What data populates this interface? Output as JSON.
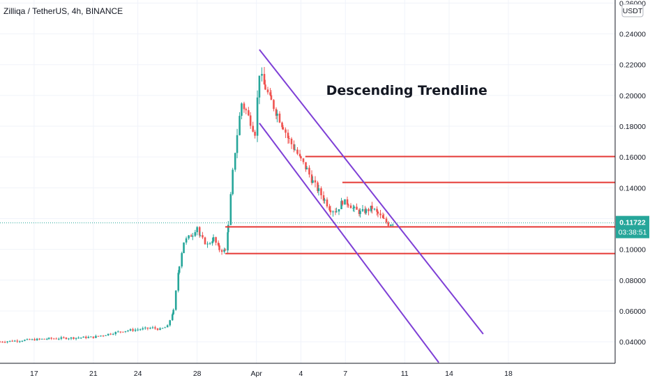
{
  "chart_data": {
    "type": "candlestick",
    "title": "Zilliqa / TetherUS, 4h, BINANCE",
    "currency": "USDT",
    "price_labels": [
      "0.26000",
      "0.24000",
      "0.22000",
      "0.20000",
      "0.18000",
      "0.16000",
      "0.14000",
      "0.12000",
      "0.10000",
      "0.08000",
      "0.06000",
      "0.04000"
    ],
    "price_ticks": [
      0.26,
      0.24,
      0.22,
      0.2,
      0.18,
      0.16,
      0.14,
      0.12,
      0.1,
      0.08,
      0.06,
      0.04
    ],
    "ylim": [
      0.026,
      0.262
    ],
    "date_labels": [
      "17",
      "21",
      "24",
      "28",
      "Apr",
      "4",
      "7",
      "11",
      "14",
      "18"
    ],
    "date_ticks": [
      -15,
      -11,
      -8,
      -4,
      0,
      3,
      6,
      10,
      13,
      17
    ],
    "xlim": [
      -17.3,
      24.2
    ],
    "current_price": {
      "value": 0.11722,
      "price_label": "0.11722",
      "countdown": "03:38:51"
    },
    "annotation": {
      "text": "Descending Trendline",
      "x": 4.7,
      "y": 0.2005
    },
    "colors": {
      "up": "#26a69a",
      "down": "#ef5350",
      "hline": "#e53935",
      "channel": "#7e3fd6",
      "current": "#26a69a"
    },
    "horizontal_lines": [
      {
        "x_start": 3.3,
        "x_end": 24.2,
        "y": 0.1603
      },
      {
        "x_start": 5.8,
        "x_end": 24.2,
        "y": 0.1435
      },
      {
        "x_start": -2.1,
        "x_end": 24.2,
        "y": 0.1146
      },
      {
        "x_start": -2.1,
        "x_end": 24.2,
        "y": 0.0973
      }
    ],
    "trendlines": [
      {
        "x1": 0.2,
        "y1": 0.2298,
        "x2": 15.3,
        "y2": 0.045
      },
      {
        "x1": 0.2,
        "y1": 0.182,
        "x2": 12.3,
        "y2": 0.0265
      }
    ],
    "key_points": [
      [
        -17.3,
        0.04
      ],
      [
        -14,
        0.042
      ],
      [
        -11,
        0.043
      ],
      [
        -9,
        0.047
      ],
      [
        -7,
        0.049
      ],
      [
        -6.5,
        0.048
      ],
      [
        -6,
        0.05
      ],
      [
        -5.6,
        0.06
      ],
      [
        -5.2,
        0.09
      ],
      [
        -4.9,
        0.105
      ],
      [
        -4.3,
        0.11
      ],
      [
        -4,
        0.115
      ],
      [
        -3.8,
        0.108
      ],
      [
        -3.3,
        0.103
      ],
      [
        -2.9,
        0.107
      ],
      [
        -2.5,
        0.1
      ],
      [
        -2.1,
        0.099
      ],
      [
        -1.9,
        0.115
      ],
      [
        -1.6,
        0.15
      ],
      [
        -1.3,
        0.175
      ],
      [
        -1,
        0.195
      ],
      [
        -0.7,
        0.19
      ],
      [
        -0.4,
        0.183
      ],
      [
        -0.1,
        0.176
      ],
      [
        0.2,
        0.215
      ],
      [
        0.6,
        0.205
      ],
      [
        1,
        0.196
      ],
      [
        1.4,
        0.188
      ],
      [
        1.8,
        0.18
      ],
      [
        2.2,
        0.171
      ],
      [
        2.6,
        0.165
      ],
      [
        3,
        0.158
      ],
      [
        3.4,
        0.152
      ],
      [
        3.8,
        0.144
      ],
      [
        4.2,
        0.138
      ],
      [
        4.6,
        0.132
      ],
      [
        5,
        0.126
      ],
      [
        5.4,
        0.125
      ],
      [
        5.8,
        0.131
      ],
      [
        6.2,
        0.13
      ],
      [
        6.6,
        0.126
      ],
      [
        7,
        0.124
      ],
      [
        7.4,
        0.125
      ],
      [
        7.8,
        0.127
      ],
      [
        8.2,
        0.123
      ],
      [
        8.6,
        0.119
      ],
      [
        8.9,
        0.1165
      ],
      [
        9.2,
        0.1172
      ]
    ]
  }
}
